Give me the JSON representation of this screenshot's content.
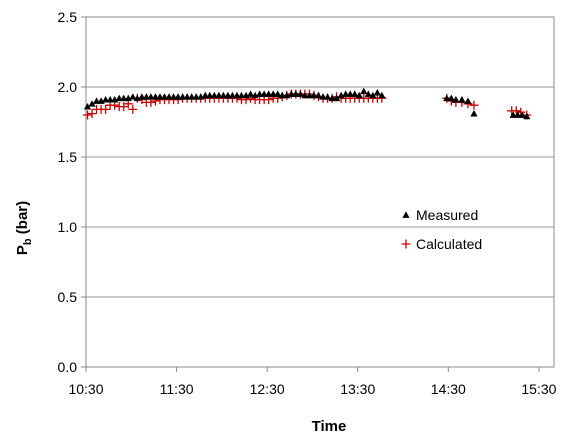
{
  "chart_data": {
    "type": "scatter",
    "xlabel": "Time",
    "ylabel_main": "P",
    "ylabel_sub": "b",
    "ylabel_unit": " (bar)",
    "xlim": [
      630,
      940
    ],
    "ylim": [
      0,
      2.5
    ],
    "x_ticks": [
      {
        "value": 630,
        "label": "10:30"
      },
      {
        "value": 690,
        "label": "11:30"
      },
      {
        "value": 750,
        "label": "12:30"
      },
      {
        "value": 810,
        "label": "13:30"
      },
      {
        "value": 870,
        "label": "14:30"
      },
      {
        "value": 930,
        "label": "15:30"
      }
    ],
    "y_ticks": [
      {
        "value": 0,
        "label": "0.0"
      },
      {
        "value": 0.5,
        "label": "0.5"
      },
      {
        "value": 1.0,
        "label": "1.0"
      },
      {
        "value": 1.5,
        "label": "1.5"
      },
      {
        "value": 2.0,
        "label": "2.0"
      },
      {
        "value": 2.5,
        "label": "2.5"
      }
    ],
    "gridlines": "horizontal",
    "legend_position": "inside-right",
    "series": [
      {
        "name": "Measured",
        "marker": "triangle",
        "color": "#000000",
        "points": [
          [
            631,
            1.86
          ],
          [
            634,
            1.88
          ],
          [
            637,
            1.9
          ],
          [
            640,
            1.9
          ],
          [
            643,
            1.91
          ],
          [
            646,
            1.91
          ],
          [
            649,
            1.91
          ],
          [
            652,
            1.92
          ],
          [
            655,
            1.92
          ],
          [
            658,
            1.92
          ],
          [
            661,
            1.93
          ],
          [
            664,
            1.92
          ],
          [
            667,
            1.93
          ],
          [
            670,
            1.93
          ],
          [
            673,
            1.93
          ],
          [
            676,
            1.93
          ],
          [
            679,
            1.93
          ],
          [
            682,
            1.93
          ],
          [
            685,
            1.93
          ],
          [
            688,
            1.93
          ],
          [
            691,
            1.93
          ],
          [
            694,
            1.93
          ],
          [
            697,
            1.93
          ],
          [
            700,
            1.93
          ],
          [
            703,
            1.93
          ],
          [
            706,
            1.93
          ],
          [
            709,
            1.94
          ],
          [
            712,
            1.94
          ],
          [
            715,
            1.94
          ],
          [
            718,
            1.94
          ],
          [
            721,
            1.94
          ],
          [
            724,
            1.94
          ],
          [
            727,
            1.94
          ],
          [
            730,
            1.94
          ],
          [
            733,
            1.94
          ],
          [
            736,
            1.94
          ],
          [
            739,
            1.95
          ],
          [
            742,
            1.94
          ],
          [
            745,
            1.95
          ],
          [
            748,
            1.95
          ],
          [
            751,
            1.95
          ],
          [
            754,
            1.95
          ],
          [
            757,
            1.95
          ],
          [
            760,
            1.94
          ],
          [
            763,
            1.94
          ],
          [
            766,
            1.95
          ],
          [
            769,
            1.95
          ],
          [
            772,
            1.95
          ],
          [
            775,
            1.94
          ],
          [
            778,
            1.94
          ],
          [
            781,
            1.94
          ],
          [
            784,
            1.94
          ],
          [
            787,
            1.93
          ],
          [
            790,
            1.93
          ],
          [
            793,
            1.92
          ],
          [
            796,
            1.92
          ],
          [
            799,
            1.94
          ],
          [
            802,
            1.95
          ],
          [
            805,
            1.95
          ],
          [
            808,
            1.95
          ],
          [
            811,
            1.94
          ],
          [
            814,
            1.97
          ],
          [
            817,
            1.95
          ],
          [
            820,
            1.94
          ],
          [
            823,
            1.96
          ],
          [
            826,
            1.94
          ],
          [
            869,
            1.92
          ],
          [
            872,
            1.92
          ],
          [
            875,
            1.91
          ],
          [
            879,
            1.91
          ],
          [
            883,
            1.9
          ],
          [
            887,
            1.81
          ],
          [
            913,
            1.8
          ],
          [
            916,
            1.8
          ],
          [
            919,
            1.8
          ],
          [
            922,
            1.79
          ]
        ]
      },
      {
        "name": "Calculated",
        "marker": "plus",
        "color": "#cc0000",
        "points": [
          [
            631,
            1.8
          ],
          [
            634,
            1.81
          ],
          [
            637,
            1.84
          ],
          [
            640,
            1.84
          ],
          [
            643,
            1.84
          ],
          [
            646,
            1.87
          ],
          [
            649,
            1.87
          ],
          [
            652,
            1.86
          ],
          [
            655,
            1.86
          ],
          [
            658,
            1.88
          ],
          [
            661,
            1.84
          ],
          [
            664,
            1.92
          ],
          [
            667,
            1.91
          ],
          [
            670,
            1.89
          ],
          [
            673,
            1.89
          ],
          [
            676,
            1.9
          ],
          [
            679,
            1.91
          ],
          [
            682,
            1.91
          ],
          [
            685,
            1.91
          ],
          [
            688,
            1.91
          ],
          [
            691,
            1.91
          ],
          [
            694,
            1.92
          ],
          [
            697,
            1.92
          ],
          [
            700,
            1.92
          ],
          [
            703,
            1.92
          ],
          [
            706,
            1.92
          ],
          [
            709,
            1.92
          ],
          [
            712,
            1.92
          ],
          [
            715,
            1.92
          ],
          [
            718,
            1.92
          ],
          [
            721,
            1.92
          ],
          [
            724,
            1.92
          ],
          [
            727,
            1.92
          ],
          [
            730,
            1.92
          ],
          [
            733,
            1.91
          ],
          [
            736,
            1.91
          ],
          [
            739,
            1.92
          ],
          [
            742,
            1.91
          ],
          [
            745,
            1.91
          ],
          [
            748,
            1.91
          ],
          [
            751,
            1.91
          ],
          [
            754,
            1.92
          ],
          [
            757,
            1.92
          ],
          [
            760,
            1.93
          ],
          [
            763,
            1.94
          ],
          [
            766,
            1.95
          ],
          [
            769,
            1.95
          ],
          [
            772,
            1.95
          ],
          [
            775,
            1.95
          ],
          [
            778,
            1.95
          ],
          [
            781,
            1.94
          ],
          [
            784,
            1.93
          ],
          [
            787,
            1.92
          ],
          [
            790,
            1.92
          ],
          [
            793,
            1.92
          ],
          [
            796,
            1.93
          ],
          [
            799,
            1.92
          ],
          [
            802,
            1.92
          ],
          [
            805,
            1.92
          ],
          [
            808,
            1.92
          ],
          [
            811,
            1.92
          ],
          [
            814,
            1.92
          ],
          [
            817,
            1.92
          ],
          [
            820,
            1.92
          ],
          [
            823,
            1.92
          ],
          [
            826,
            1.92
          ],
          [
            869,
            1.92
          ],
          [
            872,
            1.9
          ],
          [
            875,
            1.89
          ],
          [
            879,
            1.89
          ],
          [
            883,
            1.88
          ],
          [
            887,
            1.87
          ],
          [
            912,
            1.83
          ],
          [
            915,
            1.83
          ],
          [
            918,
            1.82
          ],
          [
            922,
            1.8
          ]
        ]
      }
    ]
  }
}
